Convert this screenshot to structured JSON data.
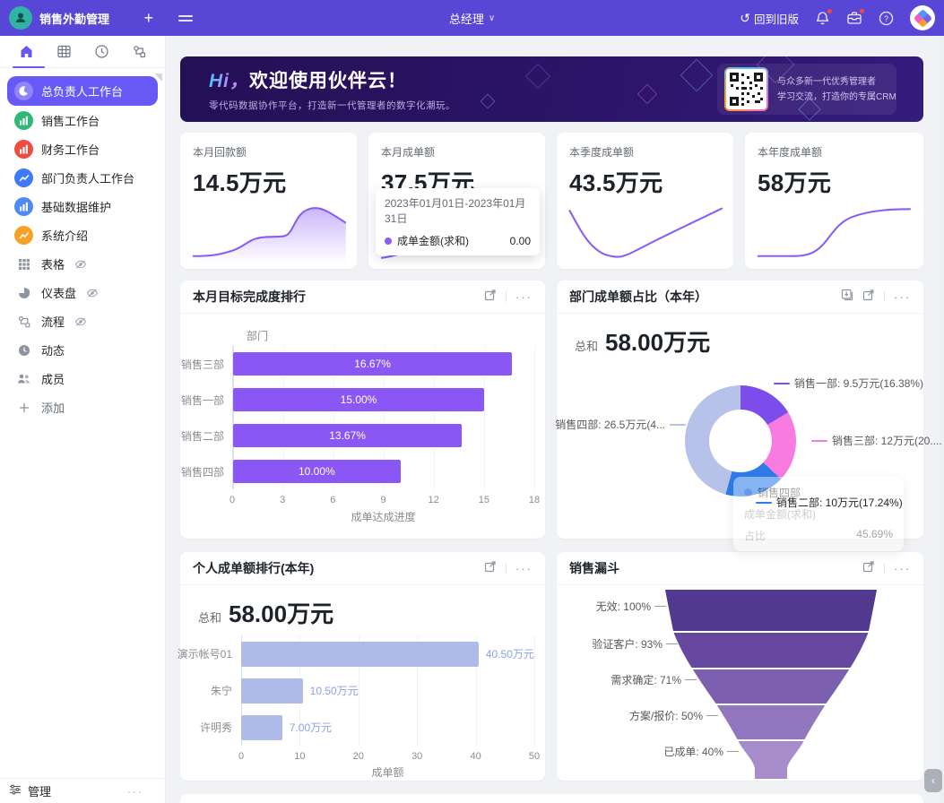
{
  "topbar": {
    "app_title": "销售外勤管理",
    "add_icon": "+",
    "role_label": "总经理",
    "dropdown_caret": "∨",
    "back_to_old_label": "回到旧版",
    "back_icon": "↺"
  },
  "sidebar": {
    "items": [
      {
        "label": "总负责人工作台",
        "active": true
      },
      {
        "label": "销售工作台"
      },
      {
        "label": "财务工作台"
      },
      {
        "label": "部门负责人工作台"
      },
      {
        "label": "基础数据维护"
      },
      {
        "label": "系统介绍"
      },
      {
        "label": "表格",
        "hidden": true
      },
      {
        "label": "仪表盘",
        "hidden": true
      },
      {
        "label": "流程",
        "hidden": true
      },
      {
        "label": "动态"
      },
      {
        "label": "成员"
      }
    ],
    "add_label": "添加",
    "manage_label": "管理",
    "more_icon": "···"
  },
  "banner": {
    "greeting": "Hi，",
    "title": "欢迎使用伙伴云！",
    "subtitle": "零代码数据协作平台，打造新一代管理者的数字化潮玩。",
    "qr_line1": "与众多新一代优秀管理者",
    "qr_line2": "学习交流，打造你的专属CRM"
  },
  "stat_cards": [
    {
      "label": "本月回款额",
      "value": "14.5万元"
    },
    {
      "label": "本月成单额",
      "value": "37.5万元",
      "tooltip": {
        "date_range": "2023年01月01日-2023年01月31日",
        "series_label": "成单金额(求和)",
        "series_value": "0.00"
      }
    },
    {
      "label": "本季度成单额",
      "value": "43.5万元"
    },
    {
      "label": "本年度成单额",
      "value": "58万元"
    }
  ],
  "chart_data": [
    {
      "id": "monthly-target-ranking",
      "type": "bar",
      "title": "本月目标完成度排行",
      "categories": [
        "销售三部",
        "销售一部",
        "销售二部",
        "销售四部"
      ],
      "values": [
        16.67,
        15.0,
        13.67,
        10.0
      ],
      "labels": [
        "16.67%",
        "15.00%",
        "13.67%",
        "10.00%"
      ],
      "xlabel": "成单达成进度",
      "ylabel": "部门",
      "xlim": [
        0,
        18
      ],
      "xticks": [
        0,
        3,
        6,
        9,
        12,
        15,
        18
      ],
      "bar_color": "#8A57F5",
      "legend_position": "none",
      "grid": true
    },
    {
      "id": "dept-deal-share",
      "type": "pie",
      "title": "部门成单额占比（本年）",
      "total_label": "总和",
      "total_value": "58.00万元",
      "slices": [
        {
          "name": "销售一部",
          "value": 16.38,
          "color": "#7C4DEB",
          "label": "销售一部: 9.5万元(16.38%)"
        },
        {
          "name": "销售三部",
          "value": 20.69,
          "color": "#F77BE0",
          "label": "销售三部: 12万元(20...."
        },
        {
          "name": "销售二部",
          "value": 17.24,
          "color": "#2E7CE8",
          "label": "销售二部: 10万元(17.24%)"
        },
        {
          "name": "销售四部",
          "value": 45.69,
          "color": "#B7C2EA",
          "label": "销售四部: 26.5万元(4..."
        }
      ],
      "tooltip": {
        "title": "销售四部",
        "metric_label": "成单金额(求和)",
        "share_label": "占比",
        "share_value": "45.69%"
      }
    },
    {
      "id": "personal-deal-ranking",
      "type": "bar",
      "title": "个人成单额排行(本年)",
      "total_label": "总和",
      "total_value": "58.00万元",
      "categories": [
        "演示帐号01",
        "朱宁",
        "许明秀"
      ],
      "values": [
        40.5,
        10.5,
        7.0
      ],
      "labels": [
        "40.50万元",
        "10.50万元",
        "7.00万元"
      ],
      "xlabel": "成单额",
      "xlim": [
        0,
        50
      ],
      "xticks": [
        0,
        10,
        20,
        30,
        40,
        50
      ],
      "bar_color": "#AEBBE8",
      "legend_position": "none",
      "grid": true
    },
    {
      "id": "sales-funnel",
      "type": "funnel",
      "title": "销售漏斗",
      "stages": [
        {
          "label": "无效: 100%",
          "value": 100,
          "color": "#53388F"
        },
        {
          "label": "验证客户: 93%",
          "value": 93,
          "color": "#66499F"
        },
        {
          "label": "需求确定: 71%",
          "value": 71,
          "color": "#7C5FAF"
        },
        {
          "label": "方案/报价: 50%",
          "value": 50,
          "color": "#9177BE"
        },
        {
          "label": "已成单: 40%",
          "value": 40,
          "color": "#A68CCB"
        }
      ]
    }
  ],
  "icons": {
    "collapse": "‹",
    "more": "···"
  },
  "colors": {
    "topbar": "#5847D6",
    "active_item": "#6759F5",
    "accent": "#8A57F5",
    "sparkline": "#8A5CF6"
  }
}
